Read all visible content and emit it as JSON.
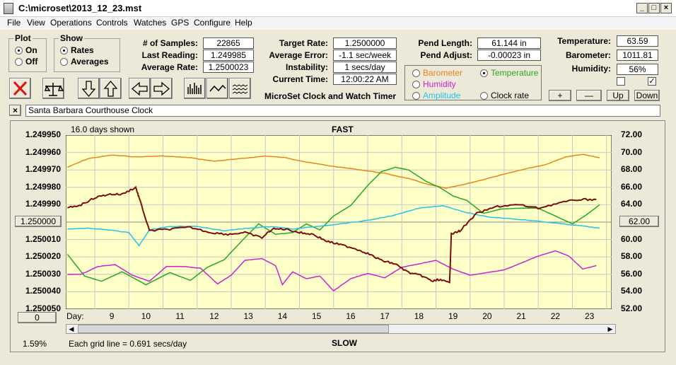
{
  "window": {
    "title": "C:\\microset\\2013_12_23.mst",
    "minimize": "_",
    "maximize": "□",
    "close": "×"
  },
  "menu": [
    "File",
    "View",
    "Operations",
    "Controls",
    "Watches",
    "GPS",
    "Configure",
    "Help"
  ],
  "plot": {
    "title": "Plot",
    "on": "On",
    "off": "Off",
    "selected": "On"
  },
  "show": {
    "title": "Show",
    "rates": "Rates",
    "averages": "Averages",
    "selected": "Rates"
  },
  "stats": {
    "samples_label": "# of Samples:",
    "samples": "22865",
    "last_label": "Last Reading:",
    "last": "1.249985",
    "avg_label": "Average Rate:",
    "avg": "1.2500023"
  },
  "target": {
    "rate_label": "Target Rate:",
    "rate": "1.2500000",
    "error_label": "Average Error:",
    "error": "-1.1 sec/week",
    "instab_label": "Instability:",
    "instab": "1 secs/day",
    "time_label": "Current Time:",
    "time": "12:00:22 AM",
    "app_name": "MicroSet Clock and Watch Timer"
  },
  "pendulum": {
    "length_label": "Pend Length:",
    "length": "61.144 in",
    "adjust_label": "Pend Adjust:",
    "adjust": "-0.00023 in"
  },
  "sensor_options": [
    {
      "label": "Barometer",
      "color": "#e8851a",
      "selected": false
    },
    {
      "label": "Temperature",
      "color": "#22aa22",
      "selected": true
    },
    {
      "label": "Humidity",
      "color": "#cc22cc",
      "selected": false
    },
    {
      "label": "Clock rate",
      "color": "#000000",
      "selected": false
    },
    {
      "label": "Amplitude",
      "color": "#22c4e8",
      "selected": false
    }
  ],
  "env": {
    "temp_label": "Temperature:",
    "temp": "63.59",
    "baro_label": "Barometer:",
    "baro": "1011.81",
    "hum_label": "Humidity:",
    "hum": "56%"
  },
  "adjust_buttons": {
    "plus": "+",
    "minus": "—",
    "up": "Up",
    "down": "Down"
  },
  "clock_name": "Santa Barbara Courthouse Clock",
  "chart": {
    "days_shown": "16.0 days shown",
    "fast": "FAST",
    "slow": "SLOW",
    "day_prefix": "Day:",
    "center_left": "1.250000",
    "center_right": "62.00",
    "offset_btn": "0",
    "percent": "1.59%",
    "grid_note": "Each grid line = 0.691 secs/day",
    "left_ticks": [
      "1.249950",
      "1.249960",
      "1.249970",
      "1.249980",
      "1.249990",
      "1.250000",
      "1.250010",
      "1.250020",
      "1.250030",
      "1.250040",
      "1.250050"
    ],
    "right_ticks": [
      "72.00",
      "70.00",
      "68.00",
      "66.00",
      "64.00",
      "62.00",
      "60.00",
      "58.00",
      "56.00",
      "54.00",
      "52.00"
    ],
    "day_ticks": [
      "9",
      "10",
      "11",
      "12",
      "13",
      "14",
      "15",
      "16",
      "17",
      "18",
      "19",
      "20",
      "21",
      "22",
      "23"
    ]
  },
  "chart_data": {
    "type": "line",
    "x_range": [
      8.15,
      24.15
    ],
    "ylim_left": [
      1.24995,
      1.25005
    ],
    "ylim_right": [
      52,
      72
    ],
    "series": [
      {
        "name": "Barometer",
        "color": "#e8851a",
        "axis": "right",
        "x": [
          8.2,
          8.8,
          9.5,
          10.2,
          11,
          11.8,
          12.5,
          13.3,
          14,
          14.6,
          15.2,
          16,
          16.8,
          17.5,
          18.2,
          18.8,
          19.3,
          19.8,
          20.4,
          21,
          21.6,
          22.2,
          22.8,
          23.3,
          23.8
        ],
        "y": [
          68.3,
          69.3,
          69.7,
          69.5,
          69.6,
          69.4,
          69.0,
          69.3,
          69.6,
          69.4,
          68.9,
          68.4,
          68.0,
          67.6,
          67.0,
          66.3,
          65.9,
          66.3,
          66.9,
          67.5,
          68.1,
          68.6,
          69.5,
          69.8,
          69.4
        ]
      },
      {
        "name": "Temperature",
        "color": "#22aa22",
        "axis": "right",
        "x": [
          8.2,
          8.7,
          9.2,
          9.8,
          10.5,
          11.2,
          11.8,
          12.3,
          12.8,
          13.3,
          13.8,
          14.3,
          14.8,
          15.2,
          15.6,
          16,
          16.5,
          17,
          17.4,
          17.8,
          18.2,
          18.7,
          19.1,
          19.5,
          19.9,
          20.4,
          20.9,
          21.5,
          22,
          22.5,
          23,
          23.4,
          23.8
        ],
        "y": [
          58.3,
          55.8,
          55.2,
          56.3,
          54.8,
          56.2,
          55.3,
          56.8,
          57.7,
          59.8,
          61.8,
          60.6,
          60.8,
          61.8,
          61.1,
          62.7,
          63.9,
          66.2,
          67.8,
          68.3,
          68.0,
          66.7,
          66.0,
          65.0,
          64.5,
          63.0,
          63.5,
          63.6,
          63.6,
          62.7,
          61.8,
          62.8,
          64.0
        ]
      },
      {
        "name": "Humidity",
        "color": "#cc22cc",
        "axis": "right",
        "x": [
          8.2,
          8.6,
          9.1,
          9.6,
          10.1,
          10.6,
          11.1,
          11.6,
          12.1,
          12.6,
          13,
          13.4,
          13.9,
          14.3,
          14.5,
          14.8,
          15.2,
          15.6,
          16,
          16.5,
          17,
          17.5,
          18,
          18.5,
          19,
          19.5,
          20,
          20.5,
          21,
          21.5,
          22,
          22.5,
          22.9,
          23.3,
          23.7
        ],
        "y": [
          56.0,
          56.0,
          56.9,
          57.1,
          55.9,
          55.2,
          56.9,
          56.9,
          56.7,
          54.9,
          55.9,
          57.6,
          57.8,
          57.0,
          54.8,
          56.3,
          55.5,
          55.8,
          54.1,
          55.5,
          56.1,
          55.6,
          56.8,
          57.2,
          57.6,
          56.6,
          55.9,
          56.2,
          56.5,
          57.3,
          58.1,
          58.7,
          58.1,
          56.6,
          57.0
        ]
      },
      {
        "name": "Amplitude",
        "color": "#22c4e8",
        "axis": "right",
        "x": [
          8.2,
          8.8,
          9.4,
          10,
          10.3,
          10.6,
          11.2,
          12,
          12.8,
          13.5,
          14.2,
          14.8,
          15.5,
          16.2,
          17,
          17.8,
          18.5,
          19.2,
          19.9,
          20.5,
          21.2,
          22,
          22.7,
          23.2,
          23.8
        ],
        "y": [
          61.2,
          61.3,
          61.1,
          60.8,
          59.3,
          61.1,
          61.5,
          61.5,
          61.0,
          61.3,
          61.5,
          61.2,
          61.5,
          61.8,
          62.2,
          62.8,
          63.6,
          63.9,
          63.1,
          62.6,
          62.4,
          62.1,
          61.8,
          61.6,
          61.3
        ]
      },
      {
        "name": "Clock rate",
        "color": "#7a0d0d",
        "axis": "left",
        "x": [
          8.2,
          8.6,
          9,
          9.4,
          9.8,
          10.2,
          10.3,
          10.6,
          11.2,
          11.8,
          12.4,
          12.9,
          13.4,
          13.9,
          14.2,
          14.6,
          15,
          15.4,
          15.8,
          16.2,
          16.6,
          17,
          17.4,
          17.8,
          18.2,
          18.6,
          18.9,
          19.1,
          19.4,
          19.45,
          19.7,
          20.2,
          20.8,
          21.4,
          22,
          22.6,
          23.2,
          23.7
        ],
        "y": [
          1.249992,
          1.24999,
          1.249986,
          1.249984,
          1.249984,
          1.24998,
          1.249986,
          1.250005,
          1.250004,
          1.250003,
          1.250006,
          1.250007,
          1.250006,
          1.250009,
          1.250004,
          1.250004,
          1.250006,
          1.250007,
          1.250011,
          1.250013,
          1.250015,
          1.250018,
          1.250022,
          1.250024,
          1.250029,
          1.250031,
          1.250034,
          1.250033,
          1.250035,
          1.250007,
          1.250005,
          1.249995,
          1.249991,
          1.24999,
          1.249992,
          1.249989,
          1.249987,
          1.249987
        ]
      }
    ]
  }
}
